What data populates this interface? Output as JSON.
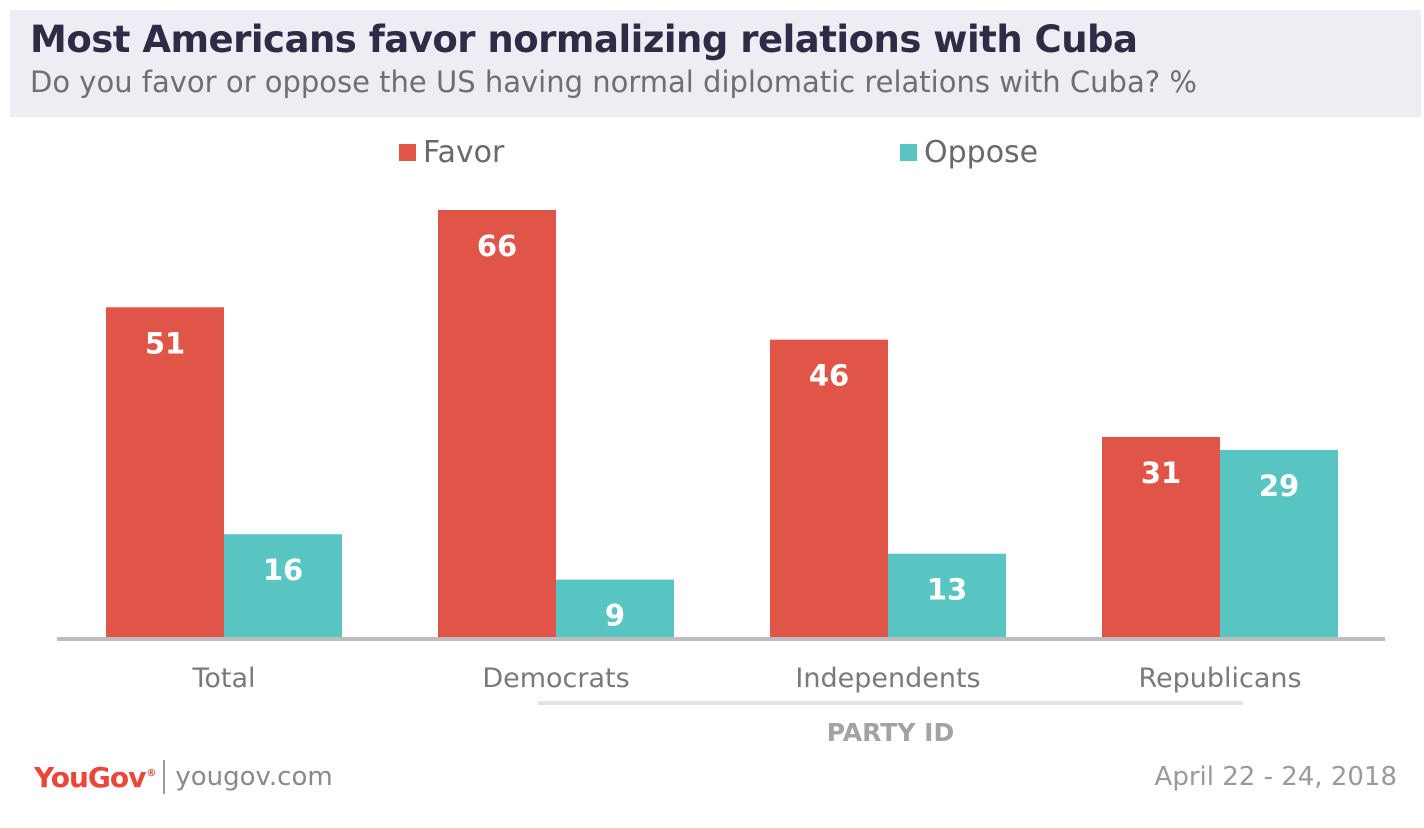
{
  "header": {
    "title": "Most Americans favor normalizing relations with Cuba",
    "subtitle": "Do you favor or oppose the US having normal diplomatic relations with Cuba? %"
  },
  "colors": {
    "favor": "#e05547",
    "oppose": "#59c5c2",
    "header_bg": "#efedf4",
    "title": "#2f2a45"
  },
  "chart_data": {
    "type": "bar",
    "title": "Most Americans favor normalizing relations with Cuba",
    "subtitle": "Do you favor or oppose the US having normal diplomatic relations with Cuba? %",
    "categories": [
      "Total",
      "Democrats",
      "Independents",
      "Republicans"
    ],
    "series": [
      {
        "name": "Favor",
        "values": [
          51,
          66,
          46,
          31
        ],
        "color": "#e05547"
      },
      {
        "name": "Oppose",
        "values": [
          16,
          9,
          13,
          29
        ],
        "color": "#59c5c2"
      }
    ],
    "group_label": "PARTY ID",
    "grouped_categories": [
      "Democrats",
      "Independents",
      "Republicans"
    ],
    "ylim": [
      0,
      66
    ],
    "grid": false,
    "legend_position": "top"
  },
  "footer": {
    "brand": "YouGov",
    "brand_sup": "®",
    "url": "yougov.com",
    "date": "April 22 - 24, 2018"
  }
}
